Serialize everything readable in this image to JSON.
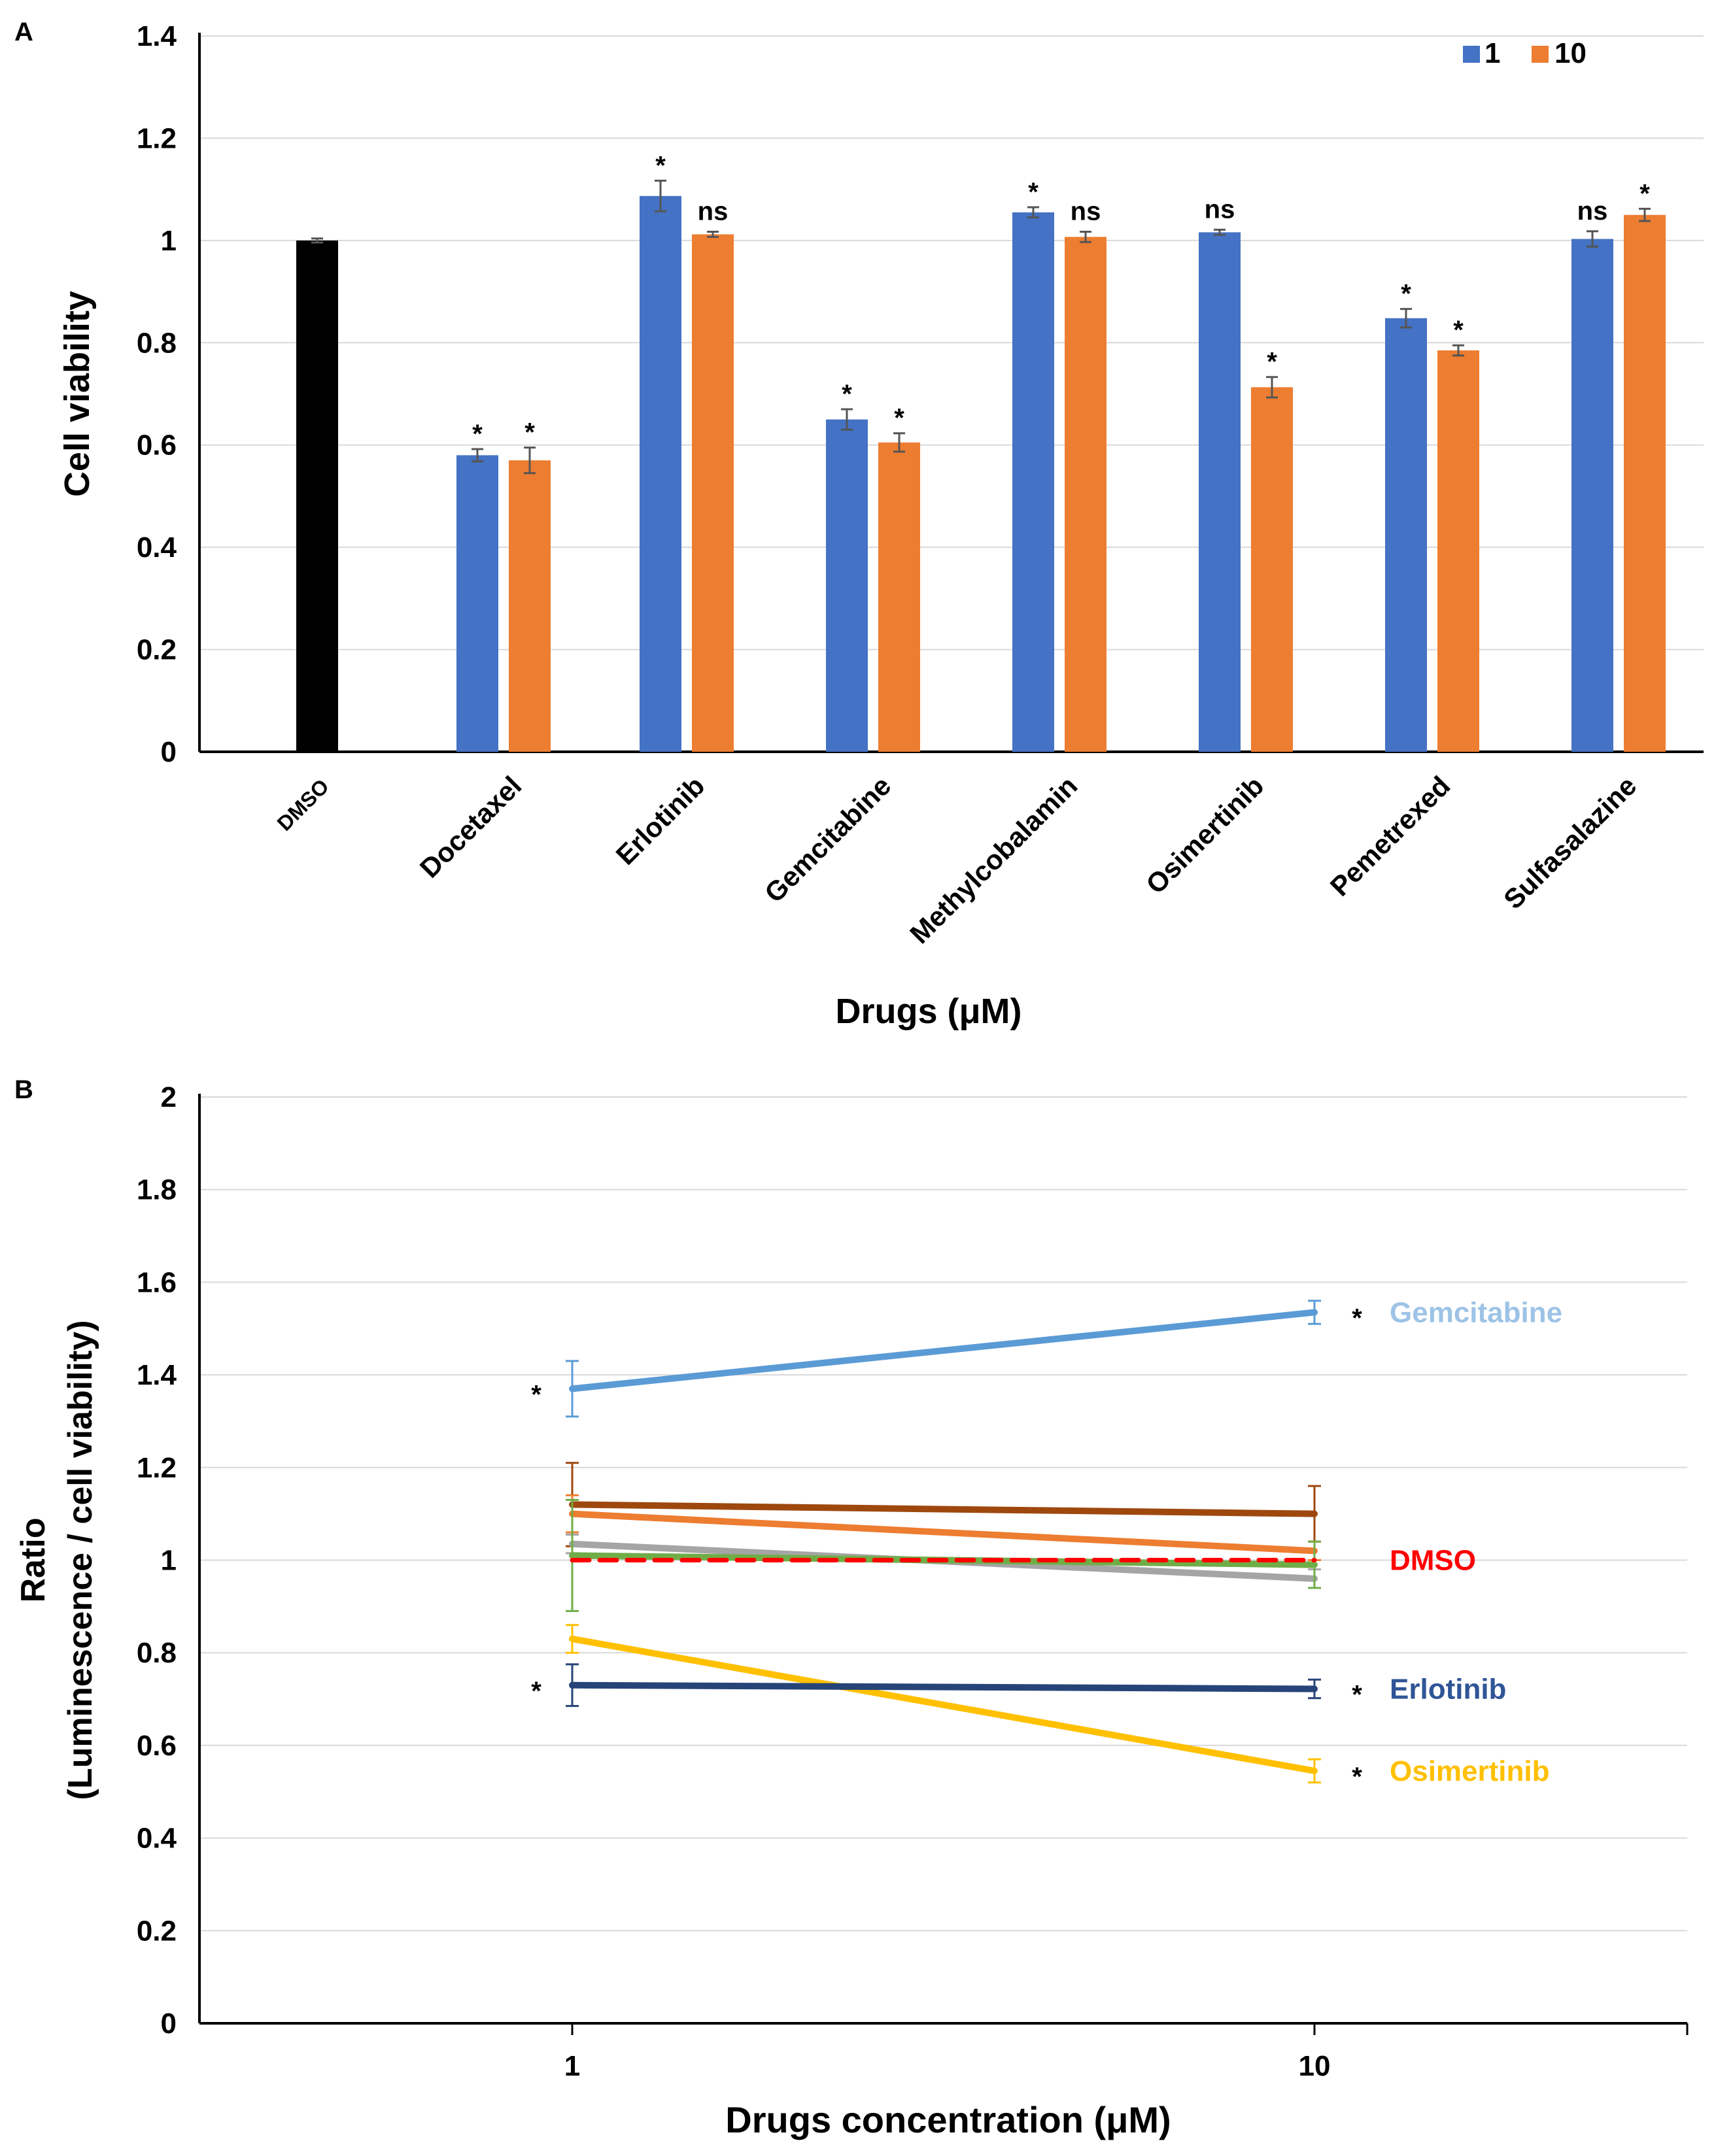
{
  "chart_data": [
    {
      "panel": "A",
      "type": "bar",
      "ylabel": "Cell viability",
      "xlabel": "Drugs (μM)",
      "ylim": [
        0,
        1.4
      ],
      "yticks": [
        0,
        0.2,
        0.4,
        0.6,
        0.8,
        1,
        1.2,
        1.4
      ],
      "grid": true,
      "legend": {
        "position": "top-right",
        "entries": [
          "1",
          "10"
        ]
      },
      "control": {
        "name": "DMSO",
        "value": 1.0,
        "error": 0.004,
        "color": "#000000"
      },
      "categories": [
        "Docetaxel",
        "Erlotinib",
        "Gemcitabine",
        "Methylcobalamin",
        "Osimertinib",
        "Pemetrexed",
        "Sulfasalazine"
      ],
      "series": [
        {
          "name": "1",
          "color": "#4472C4",
          "values": [
            0.58,
            1.087,
            0.65,
            1.055,
            1.016,
            0.848,
            1.003
          ],
          "errors": [
            0.012,
            0.03,
            0.02,
            0.01,
            0.005,
            0.018,
            0.015
          ],
          "significance": [
            "*",
            "*",
            "*",
            "*",
            "ns",
            "*",
            "ns"
          ]
        },
        {
          "name": "10",
          "color": "#ED7D31",
          "values": [
            0.57,
            1.012,
            0.605,
            1.007,
            0.713,
            0.785,
            1.05
          ],
          "errors": [
            0.025,
            0.005,
            0.018,
            0.01,
            0.02,
            0.01,
            0.012
          ],
          "significance": [
            "*",
            "ns",
            "*",
            "ns",
            "*",
            "*",
            "*"
          ]
        }
      ]
    },
    {
      "panel": "B",
      "type": "line",
      "ylabel_line1": "Ratio",
      "ylabel_line2": "(Luminescence / cell viability)",
      "xlabel": "Drugs concentration (μM)",
      "x": [
        "1",
        "10"
      ],
      "ylim": [
        0,
        2
      ],
      "yticks": [
        0,
        0.2,
        0.4,
        0.6,
        0.8,
        1,
        1.2,
        1.4,
        1.6,
        1.8,
        2
      ],
      "grid": true,
      "series": [
        {
          "name": "Gemcitabine",
          "color": "#5B9BD5",
          "label_color": "#9DC3E6",
          "values": [
            1.37,
            1.535
          ],
          "errors": [
            0.06,
            0.025
          ],
          "sig": [
            "*",
            "*"
          ],
          "labeled": true
        },
        {
          "name": "Series (brown)",
          "color": "#9E480E",
          "values": [
            1.12,
            1.1
          ],
          "errors": [
            0.09,
            0.06
          ],
          "sig": [
            "",
            ""
          ],
          "labeled": false
        },
        {
          "name": "Series (orange)",
          "color": "#ED7D31",
          "values": [
            1.1,
            1.02
          ],
          "errors": [
            0.04,
            0.02
          ],
          "sig": [
            "",
            ""
          ],
          "labeled": false
        },
        {
          "name": "Series (gray)",
          "color": "#A5A5A5",
          "values": [
            1.035,
            0.96
          ],
          "errors": [
            0.02,
            0.02
          ],
          "sig": [
            "",
            ""
          ],
          "labeled": false
        },
        {
          "name": "Series (green)",
          "color": "#70AD47",
          "values": [
            1.01,
            0.99
          ],
          "errors": [
            0.12,
            0.05
          ],
          "sig": [
            "",
            ""
          ],
          "labeled": false
        },
        {
          "name": "DMSO",
          "color": "#FF0000",
          "label_color": "#FF0000",
          "dashed": true,
          "values": [
            1.0,
            1.0
          ],
          "errors": [
            0,
            0
          ],
          "sig": [
            "",
            ""
          ],
          "labeled": true
        },
        {
          "name": "Osimertinib",
          "color": "#FFC000",
          "label_color": "#FFC000",
          "values": [
            0.83,
            0.545
          ],
          "errors": [
            0.03,
            0.025
          ],
          "sig": [
            "",
            "*"
          ],
          "labeled": true
        },
        {
          "name": "Erlotinib",
          "color": "#264478",
          "label_color": "#2F5597",
          "values": [
            0.73,
            0.722
          ],
          "errors": [
            0.045,
            0.02
          ],
          "sig": [
            "*",
            "*"
          ],
          "labeled": true
        }
      ]
    }
  ],
  "labels": {
    "panelA": "A",
    "panelB": "B"
  }
}
